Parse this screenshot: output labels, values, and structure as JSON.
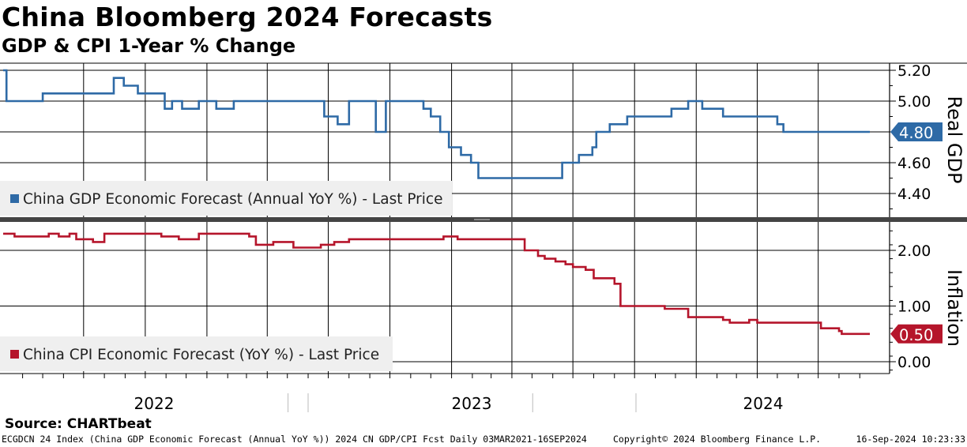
{
  "title": "China Bloomberg 2024 Forecasts",
  "subtitle": "GDP & CPI 1-Year % Change",
  "source": "Source: CHARTbeat",
  "footer": {
    "left": "ECGDCN 24 Index (China GDP Economic Forecast (Annual YoY %)) 2024 CN GDP/CPI Fcst  Daily 03MAR2021-16SEP2024",
    "middle": "Copyright© 2024 Bloomberg Finance L.P.",
    "right": "16-Sep-2024 10:23:33"
  },
  "colors": {
    "gdp": "#2e6aa6",
    "cpi": "#b5152b"
  },
  "chart_data": [
    {
      "type": "line",
      "panel": "top",
      "ylabel": "Real GDP",
      "ylim": [
        4.3,
        5.3
      ],
      "yticks": [
        "5.20",
        "5.00",
        "4.80",
        "4.60",
        "4.40"
      ],
      "x_year_labels": [
        "2022",
        "2023",
        "2024"
      ],
      "last_value_label": "4.80",
      "legend": "China GDP Economic Forecast (Annual YoY %) - Last Price",
      "series": [
        {
          "name": "China GDP Economic Forecast (Annual YoY %) - Last Price",
          "x": [
            "2021-03-03",
            "2021-03-08",
            "2021-03-12",
            "2021-05-01",
            "2021-08-05",
            "2021-08-15",
            "2021-08-25",
            "2021-08-30",
            "2021-09-10",
            "2021-09-20",
            "2021-10-25",
            "2021-10-30",
            "2021-11-05",
            "2021-11-10",
            "2021-11-20",
            "2021-11-25",
            "2021-12-15",
            "2021-12-20",
            "2022-01-10",
            "2022-01-15",
            "2022-02-05",
            "2022-02-10",
            "2022-06-20",
            "2022-06-25",
            "2022-07-05",
            "2022-07-15",
            "2022-07-25",
            "2022-08-01",
            "2022-09-05",
            "2022-09-10",
            "2022-09-20",
            "2022-09-25",
            "2022-10-15",
            "2022-11-10",
            "2022-11-20",
            "2022-11-25",
            "2022-12-01",
            "2022-12-10",
            "2022-12-15",
            "2022-12-20",
            "2022-12-28",
            "2023-01-10",
            "2023-01-15",
            "2023-01-25",
            "2023-01-30",
            "2023-02-05",
            "2023-02-10",
            "2023-02-15",
            "2023-02-20",
            "2023-02-25",
            "2023-06-01",
            "2023-06-10",
            "2023-06-15",
            "2023-06-22",
            "2023-07-10",
            "2023-07-25",
            "2023-07-30",
            "2023-08-05",
            "2023-08-15",
            "2023-08-25",
            "2023-09-01",
            "2023-09-20",
            "2023-10-01",
            "2023-10-05",
            "2023-10-10",
            "2023-10-15",
            "2023-10-20",
            "2023-11-20",
            "2023-11-25",
            "2023-12-15",
            "2023-12-20",
            "2024-01-01",
            "2024-01-10",
            "2024-01-20",
            "2024-02-10",
            "2024-02-15",
            "2024-04-05",
            "2024-04-20",
            "2024-05-01",
            "2024-05-06",
            "2024-05-10",
            "2024-05-15",
            "2024-05-20",
            "2024-06-10",
            "2024-06-20",
            "2024-07-05",
            "2024-07-10",
            "2024-07-20",
            "2024-08-10",
            "2024-08-12",
            "2024-08-14",
            "2024-08-20",
            "2024-09-16"
          ],
          "values": [
            5.2,
            5.0,
            5.0,
            5.05,
            5.05,
            5.15,
            5.15,
            5.1,
            5.1,
            5.05,
            5.05,
            4.95,
            4.95,
            5.0,
            5.0,
            4.95,
            4.95,
            5.0,
            5.0,
            4.95,
            4.95,
            5.0,
            5.0,
            4.9,
            4.9,
            4.85,
            4.85,
            5.0,
            5.0,
            4.8,
            4.8,
            5.0,
            5.0,
            5.0,
            4.95,
            4.95,
            4.9,
            4.9,
            4.8,
            4.8,
            4.7,
            4.7,
            4.65,
            4.65,
            4.6,
            4.6,
            4.5,
            4.5,
            4.5,
            4.5,
            4.5,
            4.5,
            4.6,
            4.6,
            4.65,
            4.65,
            4.7,
            4.8,
            4.8,
            4.85,
            4.85,
            4.9,
            4.9,
            4.9,
            4.9,
            4.9,
            4.9,
            4.9,
            4.95,
            4.95,
            5.0,
            5.0,
            4.95,
            4.95,
            4.9,
            4.9,
            4.9,
            4.9,
            4.85,
            4.85,
            4.8,
            4.8,
            4.8,
            4.8,
            4.8,
            4.8,
            4.8,
            4.8,
            4.8,
            4.8,
            4.8,
            4.8,
            4.8
          ]
        }
      ]
    },
    {
      "type": "line",
      "panel": "bottom",
      "ylabel": "Inflation",
      "ylim": [
        -0.15,
        2.6
      ],
      "yticks": [
        "2.00",
        "1.00",
        "0.00"
      ],
      "x_year_labels": [
        "2022",
        "2023",
        "2024"
      ],
      "last_value_label": "0.50",
      "legend": "China CPI Economic Forecast (YoY %) - Last Price",
      "series": [
        {
          "name": "China CPI Economic Forecast (YoY %) - Last Price",
          "x": [
            "2021-03-03",
            "2021-03-20",
            "2021-05-01",
            "2021-05-10",
            "2021-05-25",
            "2021-06-10",
            "2021-06-20",
            "2021-07-05",
            "2021-07-15",
            "2021-08-01",
            "2021-10-15",
            "2021-10-25",
            "2021-11-10",
            "2021-11-20",
            "2021-12-10",
            "2021-12-20",
            "2022-02-25",
            "2022-03-05",
            "2022-03-10",
            "2022-03-15",
            "2022-03-25",
            "2022-04-10",
            "2022-05-01",
            "2022-05-10",
            "2022-06-10",
            "2022-06-20",
            "2022-07-01",
            "2022-07-10",
            "2022-07-15",
            "2022-07-20",
            "2022-08-01",
            "2022-10-25",
            "2022-11-10",
            "2022-12-20",
            "2023-01-05",
            "2023-01-10",
            "2023-02-20",
            "2023-03-01",
            "2023-04-15",
            "2023-04-20",
            "2023-05-10",
            "2023-05-20",
            "2023-06-01",
            "2023-06-05",
            "2023-06-15",
            "2023-06-20",
            "2023-07-01",
            "2023-07-20",
            "2023-08-01",
            "2023-09-01",
            "2023-09-10",
            "2023-11-01",
            "2023-11-15",
            "2023-12-20",
            "2024-01-05",
            "2024-02-10",
            "2024-02-20",
            "2024-03-20",
            "2024-04-01",
            "2024-05-20",
            "2024-07-05",
            "2024-07-20",
            "2024-08-01",
            "2024-08-05",
            "2024-08-10",
            "2024-09-16"
          ],
          "values": [
            2.3,
            2.25,
            2.25,
            2.3,
            2.25,
            2.3,
            2.2,
            2.2,
            2.15,
            2.3,
            2.3,
            2.25,
            2.25,
            2.2,
            2.2,
            2.3,
            2.3,
            2.25,
            2.25,
            2.1,
            2.1,
            2.15,
            2.15,
            2.05,
            2.05,
            2.1,
            2.1,
            2.15,
            2.15,
            2.15,
            2.2,
            2.2,
            2.2,
            2.25,
            2.25,
            2.2,
            2.2,
            2.2,
            2.2,
            2.0,
            1.9,
            1.85,
            1.85,
            1.8,
            1.8,
            1.75,
            1.7,
            1.65,
            1.5,
            1.4,
            1.0,
            1.0,
            0.95,
            0.8,
            0.8,
            0.75,
            0.7,
            0.75,
            0.7,
            0.7,
            0.6,
            0.6,
            0.55,
            0.5,
            0.5,
            0.5
          ]
        }
      ]
    }
  ]
}
